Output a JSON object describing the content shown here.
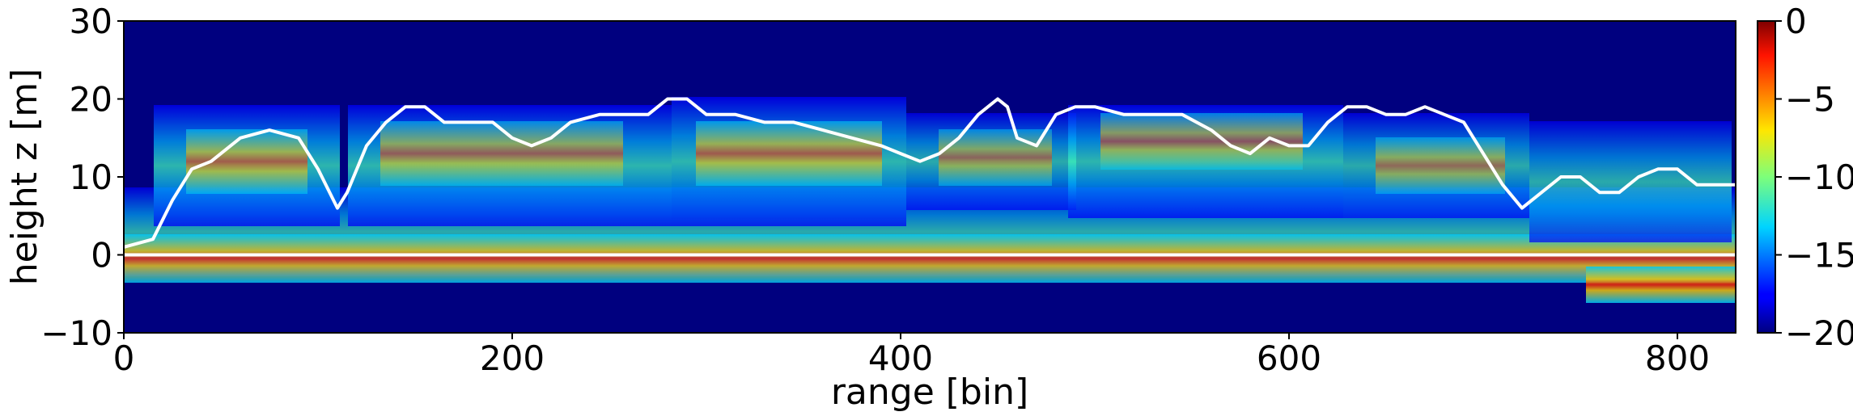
{
  "chart_data": {
    "type": "heatmap",
    "title": "",
    "xlabel": "range [bin]",
    "ylabel": "height z [m]",
    "xlim": [
      0,
      830
    ],
    "ylim": [
      -10,
      30
    ],
    "x_ticks": [
      0,
      200,
      400,
      600,
      800
    ],
    "y_ticks": [
      -10,
      0,
      10,
      20,
      30
    ],
    "colorbar": {
      "colormap": "jet",
      "range": [
        -20,
        0
      ],
      "ticks": [
        0,
        -5,
        -10,
        -15,
        -20
      ]
    },
    "background_color": "#00007f",
    "series": [
      {
        "type": "line",
        "color": "#ffffff",
        "x": [
          0,
          15,
          25,
          35,
          45,
          60,
          75,
          90,
          100,
          110,
          115,
          125,
          135,
          145,
          155,
          165,
          175,
          190,
          200,
          210,
          220,
          230,
          245,
          260,
          270,
          280,
          290,
          300,
          315,
          330,
          345,
          360,
          375,
          390,
          400,
          410,
          420,
          430,
          440,
          450,
          455,
          460,
          470,
          480,
          490,
          500,
          515,
          530,
          545,
          560,
          570,
          580,
          590,
          600,
          610,
          620,
          630,
          640,
          650,
          660,
          670,
          680,
          690,
          700,
          710,
          720,
          730,
          740,
          750,
          760,
          770,
          780,
          790,
          800,
          810,
          820,
          830
        ],
        "y": [
          1,
          2,
          7,
          11,
          12,
          15,
          16,
          15,
          11,
          6,
          8,
          14,
          17,
          19,
          19,
          17,
          17,
          17,
          15,
          14,
          15,
          17,
          18,
          18,
          18,
          20,
          20,
          18,
          18,
          17,
          17,
          16,
          15,
          14,
          13,
          12,
          13,
          15,
          18,
          20,
          19,
          15,
          14,
          18,
          19,
          19,
          18,
          18,
          18,
          16,
          14,
          13,
          15,
          14,
          14,
          17,
          19,
          19,
          18,
          18,
          19,
          18,
          17,
          13,
          9,
          6,
          8,
          10,
          10,
          8,
          8,
          10,
          11,
          11,
          9,
          9,
          9
        ]
      },
      {
        "type": "line",
        "color": "#ffffff",
        "x": [
          0,
          830
        ],
        "y": [
          0,
          0
        ]
      }
    ]
  }
}
